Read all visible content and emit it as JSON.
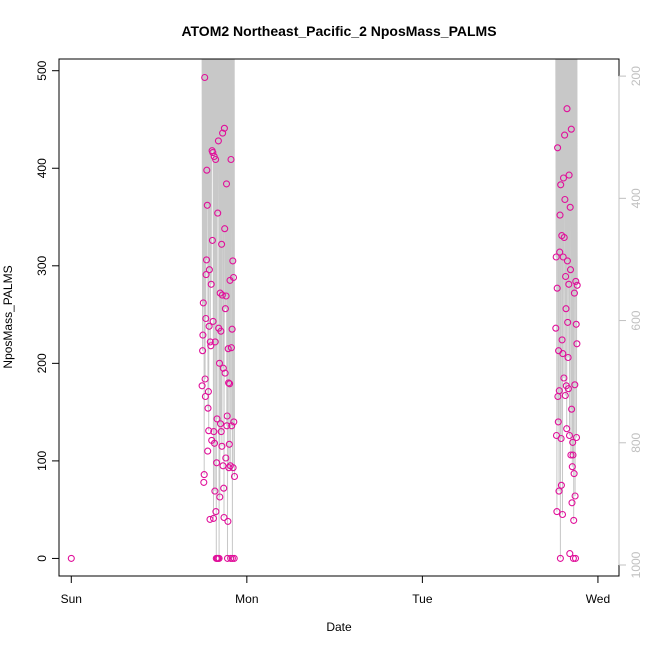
{
  "chart_data": {
    "type": "scatter",
    "title": "ATOM2 Northeast_Pacific_2 NposMass_PALMS",
    "xlabel": "Date",
    "ylabel": "NposMass_PALMS",
    "x_ticks": [
      "Sun",
      "Mon",
      "Tue",
      "Wed"
    ],
    "xlim": [
      -0.07,
      3.12
    ],
    "ylim": [
      -18,
      512
    ],
    "y_ticks": [
      0,
      100,
      200,
      300,
      400,
      500
    ],
    "grid": false,
    "colors": {
      "points": "#e0109a",
      "altitude_line": "#c8c8c8",
      "right_axis": "#c0c0c0"
    },
    "secondary_axis": {
      "position": "right",
      "ticks": [
        200,
        400,
        600,
        800,
        1000
      ],
      "reversed": true,
      "range": [
        172,
        1018
      ]
    },
    "series": [
      {
        "values": [
          {
            "x": 0.0,
            "y": 0
          },
          {
            "x": 0.745,
            "y": 177
          },
          {
            "x": 0.748,
            "y": 213
          },
          {
            "x": 0.75,
            "y": 229
          },
          {
            "x": 0.752,
            "y": 262
          },
          {
            "x": 0.755,
            "y": 78
          },
          {
            "x": 0.757,
            "y": 86
          },
          {
            "x": 0.76,
            "y": 493
          },
          {
            "x": 0.762,
            "y": 184
          },
          {
            "x": 0.764,
            "y": 166
          },
          {
            "x": 0.766,
            "y": 246
          },
          {
            "x": 0.768,
            "y": 291
          },
          {
            "x": 0.77,
            "y": 306
          },
          {
            "x": 0.772,
            "y": 398
          },
          {
            "x": 0.775,
            "y": 362
          },
          {
            "x": 0.777,
            "y": 110
          },
          {
            "x": 0.779,
            "y": 154
          },
          {
            "x": 0.781,
            "y": 171
          },
          {
            "x": 0.783,
            "y": 131
          },
          {
            "x": 0.785,
            "y": 238
          },
          {
            "x": 0.787,
            "y": 296
          },
          {
            "x": 0.79,
            "y": 40
          },
          {
            "x": 0.792,
            "y": 222
          },
          {
            "x": 0.795,
            "y": 218
          },
          {
            "x": 0.797,
            "y": 281
          },
          {
            "x": 0.8,
            "y": 121
          },
          {
            "x": 0.802,
            "y": 418
          },
          {
            "x": 0.804,
            "y": 326
          },
          {
            "x": 0.806,
            "y": 416
          },
          {
            "x": 0.808,
            "y": 243
          },
          {
            "x": 0.81,
            "y": 41
          },
          {
            "x": 0.812,
            "y": 130
          },
          {
            "x": 0.814,
            "y": 412
          },
          {
            "x": 0.816,
            "y": 118
          },
          {
            "x": 0.818,
            "y": 69
          },
          {
            "x": 0.82,
            "y": 222
          },
          {
            "x": 0.822,
            "y": 409
          },
          {
            "x": 0.824,
            "y": 48
          },
          {
            "x": 0.826,
            "y": 0
          },
          {
            "x": 0.828,
            "y": 98
          },
          {
            "x": 0.83,
            "y": 143
          },
          {
            "x": 0.832,
            "y": 0
          },
          {
            "x": 0.834,
            "y": 354
          },
          {
            "x": 0.836,
            "y": 0
          },
          {
            "x": 0.838,
            "y": 428
          },
          {
            "x": 0.84,
            "y": 236
          },
          {
            "x": 0.842,
            "y": 0
          },
          {
            "x": 0.844,
            "y": 200
          },
          {
            "x": 0.846,
            "y": 63
          },
          {
            "x": 0.848,
            "y": 272
          },
          {
            "x": 0.85,
            "y": 138
          },
          {
            "x": 0.852,
            "y": 233
          },
          {
            "x": 0.854,
            "y": 130
          },
          {
            "x": 0.856,
            "y": 322
          },
          {
            "x": 0.858,
            "y": 115
          },
          {
            "x": 0.86,
            "y": 270
          },
          {
            "x": 0.862,
            "y": 436
          },
          {
            "x": 0.864,
            "y": 95
          },
          {
            "x": 0.866,
            "y": 195
          },
          {
            "x": 0.868,
            "y": 72
          },
          {
            "x": 0.87,
            "y": 42
          },
          {
            "x": 0.872,
            "y": 441
          },
          {
            "x": 0.874,
            "y": 338
          },
          {
            "x": 0.876,
            "y": 190
          },
          {
            "x": 0.878,
            "y": 256
          },
          {
            "x": 0.88,
            "y": 103
          },
          {
            "x": 0.882,
            "y": 269
          },
          {
            "x": 0.884,
            "y": 384
          },
          {
            "x": 0.886,
            "y": 136
          },
          {
            "x": 0.888,
            "y": 146
          },
          {
            "x": 0.89,
            "y": 0
          },
          {
            "x": 0.892,
            "y": 38
          },
          {
            "x": 0.894,
            "y": 215
          },
          {
            "x": 0.896,
            "y": 180
          },
          {
            "x": 0.898,
            "y": 93
          },
          {
            "x": 0.9,
            "y": 117
          },
          {
            "x": 0.902,
            "y": 179
          },
          {
            "x": 0.904,
            "y": 285
          },
          {
            "x": 0.906,
            "y": 95
          },
          {
            "x": 0.908,
            "y": 0
          },
          {
            "x": 0.91,
            "y": 409
          },
          {
            "x": 0.912,
            "y": 216
          },
          {
            "x": 0.914,
            "y": 136
          },
          {
            "x": 0.916,
            "y": 235
          },
          {
            "x": 0.918,
            "y": 0
          },
          {
            "x": 0.92,
            "y": 305
          },
          {
            "x": 0.922,
            "y": 93
          },
          {
            "x": 0.924,
            "y": 288
          },
          {
            "x": 0.926,
            "y": 140
          },
          {
            "x": 0.928,
            "y": 0
          },
          {
            "x": 0.93,
            "y": 84
          },
          {
            "x": 2.76,
            "y": 236
          },
          {
            "x": 2.762,
            "y": 309
          },
          {
            "x": 2.764,
            "y": 126
          },
          {
            "x": 2.766,
            "y": 48
          },
          {
            "x": 2.768,
            "y": 277
          },
          {
            "x": 2.77,
            "y": 421
          },
          {
            "x": 2.772,
            "y": 166
          },
          {
            "x": 2.774,
            "y": 140
          },
          {
            "x": 2.776,
            "y": 213
          },
          {
            "x": 2.778,
            "y": 69
          },
          {
            "x": 2.78,
            "y": 172
          },
          {
            "x": 2.782,
            "y": 314
          },
          {
            "x": 2.784,
            "y": 352
          },
          {
            "x": 2.786,
            "y": 0
          },
          {
            "x": 2.788,
            "y": 383
          },
          {
            "x": 2.79,
            "y": 123
          },
          {
            "x": 2.792,
            "y": 75
          },
          {
            "x": 2.794,
            "y": 331
          },
          {
            "x": 2.796,
            "y": 224
          },
          {
            "x": 2.798,
            "y": 45
          },
          {
            "x": 2.8,
            "y": 210
          },
          {
            "x": 2.802,
            "y": 309
          },
          {
            "x": 2.804,
            "y": 390
          },
          {
            "x": 2.806,
            "y": 185
          },
          {
            "x": 2.808,
            "y": 329
          },
          {
            "x": 2.81,
            "y": 434
          },
          {
            "x": 2.812,
            "y": 368
          },
          {
            "x": 2.814,
            "y": 167
          },
          {
            "x": 2.816,
            "y": 289
          },
          {
            "x": 2.818,
            "y": 256
          },
          {
            "x": 2.82,
            "y": 177
          },
          {
            "x": 2.822,
            "y": 133
          },
          {
            "x": 2.824,
            "y": 461
          },
          {
            "x": 2.826,
            "y": 305
          },
          {
            "x": 2.828,
            "y": 242
          },
          {
            "x": 2.83,
            "y": 206
          },
          {
            "x": 2.832,
            "y": 174
          },
          {
            "x": 2.834,
            "y": 281
          },
          {
            "x": 2.836,
            "y": 393
          },
          {
            "x": 2.838,
            "y": 126
          },
          {
            "x": 2.84,
            "y": 5
          },
          {
            "x": 2.842,
            "y": 360
          },
          {
            "x": 2.844,
            "y": 296
          },
          {
            "x": 2.846,
            "y": 106
          },
          {
            "x": 2.848,
            "y": 440
          },
          {
            "x": 2.85,
            "y": 153
          },
          {
            "x": 2.852,
            "y": 57
          },
          {
            "x": 2.854,
            "y": 94
          },
          {
            "x": 2.856,
            "y": 119
          },
          {
            "x": 2.858,
            "y": 106
          },
          {
            "x": 2.86,
            "y": 0
          },
          {
            "x": 2.862,
            "y": 39
          },
          {
            "x": 2.864,
            "y": 87
          },
          {
            "x": 2.866,
            "y": 272
          },
          {
            "x": 2.868,
            "y": 178
          },
          {
            "x": 2.87,
            "y": 64
          },
          {
            "x": 2.872,
            "y": 0
          },
          {
            "x": 2.874,
            "y": 284
          },
          {
            "x": 2.876,
            "y": 240
          },
          {
            "x": 2.878,
            "y": 124
          },
          {
            "x": 2.88,
            "y": 220
          },
          {
            "x": 2.882,
            "y": 280
          }
        ]
      }
    ]
  }
}
